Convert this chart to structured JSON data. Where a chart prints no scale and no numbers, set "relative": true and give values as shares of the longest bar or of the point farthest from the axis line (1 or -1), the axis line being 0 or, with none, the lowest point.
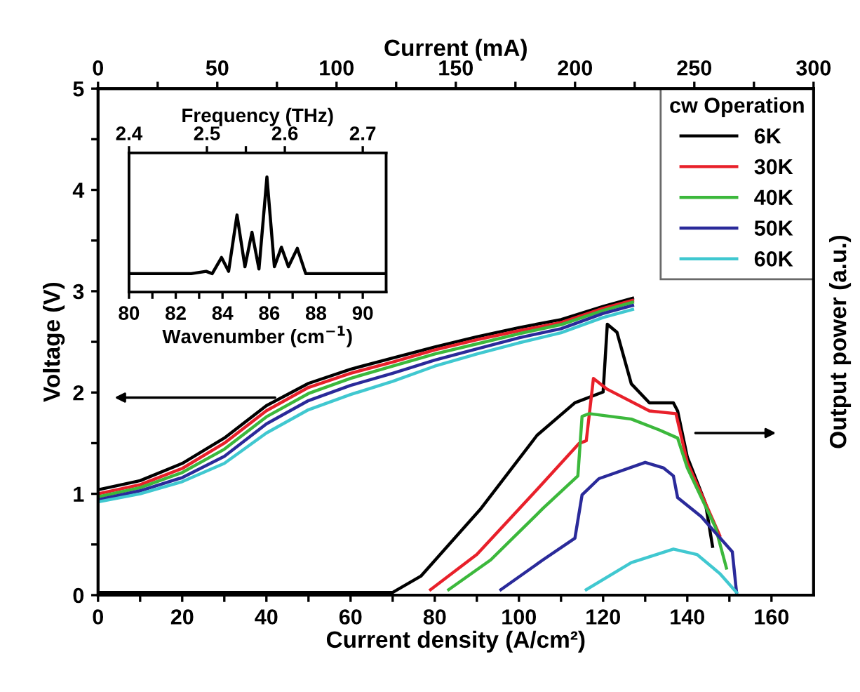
{
  "chart_data": [
    {
      "type": "line",
      "xlabel": "Current density (A/cm²)",
      "ylabel": "Voltage (V)",
      "x2label": "Current (mA)",
      "legend_title": "cw Operation",
      "legend": "top right",
      "grid": false,
      "xlim": [
        0,
        170
      ],
      "xticks": [
        0,
        {
          "value": 10,
          "label": null
        },
        20,
        {
          "value": 30,
          "label": null
        },
        40,
        {
          "value": 50,
          "label": null
        },
        60,
        {
          "value": 70,
          "label": null
        },
        80,
        {
          "value": 90,
          "label": null
        },
        100,
        {
          "value": 110,
          "label": null
        },
        120,
        {
          "value": 130,
          "label": null
        },
        140,
        {
          "value": 150,
          "label": null
        },
        160
      ],
      "x2lim": [
        0,
        300
      ],
      "x2ticks": [
        0,
        {
          "value": 25,
          "label": null
        },
        50,
        {
          "value": 75,
          "label": null
        },
        100,
        {
          "value": 125,
          "label": null
        },
        150,
        {
          "value": 175,
          "label": null
        },
        200,
        {
          "value": 225,
          "label": null
        },
        250,
        {
          "value": 275,
          "label": null
        },
        300
      ],
      "ylim": [
        0,
        5
      ],
      "yticks": [
        0,
        {
          "value": 0.5,
          "label": null
        },
        1,
        {
          "value": 1.5,
          "label": null
        },
        2,
        {
          "value": 2.5,
          "label": null
        },
        3,
        {
          "value": 3.5,
          "label": null
        },
        4,
        {
          "value": 4.5,
          "label": null
        },
        5
      ],
      "x": [
        0,
        10,
        20,
        30,
        40,
        50,
        60,
        70,
        80,
        90,
        100,
        110,
        120,
        127
      ],
      "series": [
        {
          "name": "6K",
          "color": "#000000",
          "values": [
            1.04,
            1.13,
            1.3,
            1.55,
            1.87,
            2.09,
            2.23,
            2.34,
            2.45,
            2.55,
            2.64,
            2.72,
            2.85,
            2.93
          ]
        },
        {
          "name": "30K",
          "color": "#e8202a",
          "values": [
            1.0,
            1.09,
            1.25,
            1.5,
            1.82,
            2.05,
            2.19,
            2.3,
            2.42,
            2.52,
            2.61,
            2.69,
            2.83,
            2.91
          ]
        },
        {
          "name": "40K",
          "color": "#3cb83c",
          "values": [
            0.97,
            1.06,
            1.21,
            1.44,
            1.76,
            1.99,
            2.14,
            2.26,
            2.38,
            2.48,
            2.58,
            2.67,
            2.81,
            2.89
          ]
        },
        {
          "name": "50K",
          "color": "#2a2a9a",
          "values": [
            0.94,
            1.03,
            1.16,
            1.37,
            1.69,
            1.92,
            2.07,
            2.19,
            2.32,
            2.43,
            2.54,
            2.63,
            2.78,
            2.86
          ]
        },
        {
          "name": "60K",
          "color": "#40c8d0",
          "values": [
            0.92,
            1.0,
            1.12,
            1.3,
            1.6,
            1.83,
            1.98,
            2.11,
            2.26,
            2.38,
            2.49,
            2.59,
            2.74,
            2.82
          ]
        }
      ]
    },
    {
      "type": "line",
      "relative": true,
      "ylabel": "Output power (a.u.)",
      "tick_labels": false,
      "xlim": [
        0,
        170
      ],
      "series": [
        {
          "color": "#000000",
          "x": [
            0,
            70,
            76.7,
            91,
            104.3,
            113.3,
            120,
            121,
            123.3,
            126.7,
            131,
            136.7,
            137.7,
            140,
            144.3,
            146
          ],
          "values": [
            0.01,
            0.01,
            0.07,
            0.32,
            0.59,
            0.71,
            0.75,
            1,
            0.97,
            0.78,
            0.71,
            0.71,
            0.68,
            0.51,
            0.34,
            0.18
          ]
        },
        {
          "color": "#e8202a",
          "x": [
            79,
            90,
            104.3,
            114.3,
            116,
            117.7,
            121,
            131,
            137.3,
            140,
            144.3,
            147.7
          ],
          "values": [
            0.02,
            0.15,
            0.39,
            0.56,
            0.57,
            0.8,
            0.76,
            0.68,
            0.67,
            0.49,
            0.34,
            0.22
          ]
        },
        {
          "color": "#3cb83c",
          "x": [
            83.3,
            93.3,
            105.7,
            114,
            115,
            116.7,
            126.7,
            133.3,
            137.7,
            140,
            146.7,
            149.3
          ],
          "values": [
            0.02,
            0.13,
            0.32,
            0.44,
            0.66,
            0.67,
            0.65,
            0.61,
            0.58,
            0.47,
            0.25,
            0.1
          ]
        },
        {
          "color": "#2a2a9a",
          "x": [
            95.7,
            105.7,
            113.3,
            115,
            119,
            130,
            134.3,
            136.7,
            137.7,
            143.3,
            150.7,
            151.7
          ],
          "values": [
            0.02,
            0.13,
            0.21,
            0.37,
            0.43,
            0.49,
            0.47,
            0.44,
            0.36,
            0.29,
            0.16,
            0.01
          ]
        },
        {
          "color": "#40c8d0",
          "x": [
            116,
            126.7,
            136.7,
            142.3,
            147.7,
            151.7
          ],
          "values": [
            0.02,
            0.12,
            0.17,
            0.15,
            0.08,
            0.01
          ]
        }
      ]
    },
    {
      "type": "line",
      "relative": true,
      "xlabel": "Wavenumber (cm$^{−1}$)",
      "x2label": "Frequency (THz)",
      "tick_labels": "x",
      "xlim": [
        80,
        91
      ],
      "xticks": [
        80,
        {
          "value": 81,
          "label": null
        },
        82,
        {
          "value": 83,
          "label": null
        },
        84,
        {
          "value": 85,
          "label": null
        },
        86,
        {
          "value": 87,
          "label": null
        },
        88,
        {
          "value": 89,
          "label": null
        },
        90
      ],
      "x2lim": [
        2.4,
        2.73
      ],
      "x2ticks": [
        2.4,
        2.5,
        {
          "value": 2.55,
          "label": null
        },
        2.6,
        2.7
      ],
      "series": [
        {
          "color": "#000000",
          "x": [
            80,
            82.66,
            83.3,
            83.56,
            83.96,
            84.26,
            84.62,
            84.96,
            85.26,
            85.56,
            85.9,
            86.22,
            86.52,
            86.82,
            87.2,
            87.56,
            91
          ],
          "values": [
            0.16,
            0.16,
            0.18,
            0.16,
            0.3,
            0.18,
            0.67,
            0.22,
            0.52,
            0.2,
            1,
            0.22,
            0.39,
            0.22,
            0.38,
            0.16,
            0.16
          ]
        }
      ]
    }
  ]
}
